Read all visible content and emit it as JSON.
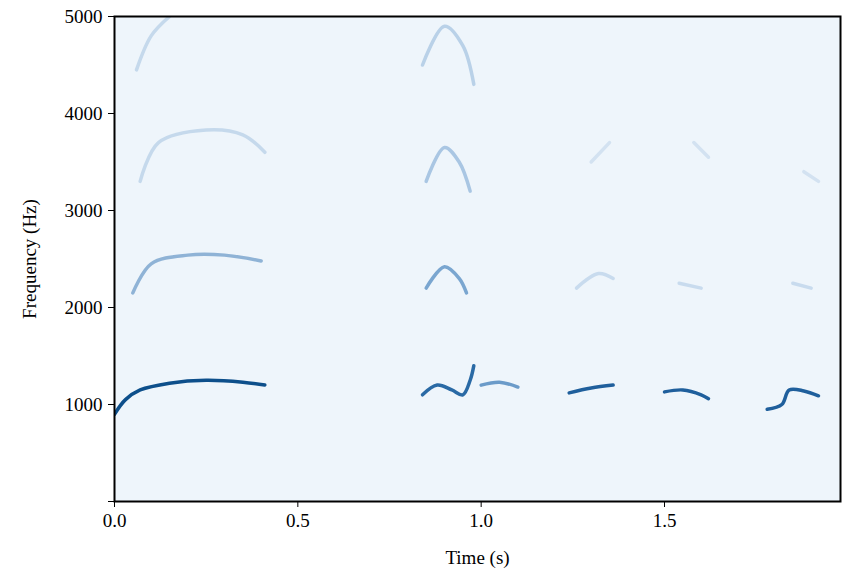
{
  "chart_data": {
    "type": "spectrogram",
    "x_label": "Time (s)",
    "y_label": "Frequency (Hz)",
    "xlim": [
      0,
      1.98
    ],
    "ylim": [
      0,
      5000
    ],
    "xticks": [
      {
        "value": 0,
        "label": "0.0"
      },
      {
        "value": 0.5,
        "label": "0.5"
      },
      {
        "value": 1,
        "label": "1.0"
      },
      {
        "value": 1.5,
        "label": "1.5"
      }
    ],
    "yticks": [
      0,
      1000,
      2000,
      3000,
      4000,
      5000
    ],
    "grid": false,
    "tracks": [
      {
        "color": "#0d4f8b",
        "x": [
          0.0,
          0.03,
          0.07,
          0.15,
          0.25,
          0.35,
          0.41
        ],
        "y": [
          900,
          1050,
          1150,
          1220,
          1250,
          1230,
          1200
        ]
      },
      {
        "color": "#8fb3d6",
        "x": [
          0.05,
          0.1,
          0.2,
          0.3,
          0.4
        ],
        "y": [
          2150,
          2450,
          2540,
          2540,
          2480
        ]
      },
      {
        "color": "#c5d9ec",
        "x": [
          0.07,
          0.12,
          0.25,
          0.35,
          0.41
        ],
        "y": [
          3300,
          3700,
          3830,
          3780,
          3600
        ]
      },
      {
        "color": "#c5d9ec",
        "x": [
          0.06,
          0.1,
          0.15
        ],
        "y": [
          4450,
          4800,
          5000
        ]
      },
      {
        "color": "#2a6aa5",
        "x": [
          0.84,
          0.88,
          0.92,
          0.95,
          0.97,
          0.98
        ],
        "y": [
          1100,
          1200,
          1150,
          1100,
          1250,
          1400
        ]
      },
      {
        "color": "#6b9bc9",
        "x": [
          1.0,
          1.05,
          1.1
        ],
        "y": [
          1200,
          1230,
          1180
        ]
      },
      {
        "color": "#7aa6d0",
        "x": [
          0.85,
          0.9,
          0.94,
          0.96
        ],
        "y": [
          2200,
          2420,
          2300,
          2150
        ]
      },
      {
        "color": "#a9c6e3",
        "x": [
          0.85,
          0.9,
          0.94,
          0.97
        ],
        "y": [
          3300,
          3650,
          3500,
          3200
        ]
      },
      {
        "color": "#b9d1e8",
        "x": [
          0.84,
          0.9,
          0.95,
          0.98
        ],
        "y": [
          4500,
          4900,
          4700,
          4300
        ]
      },
      {
        "color": "#1f5f9c",
        "x": [
          1.24,
          1.3,
          1.36
        ],
        "y": [
          1120,
          1170,
          1200
        ]
      },
      {
        "color": "#1f5f9c",
        "x": [
          1.5,
          1.55,
          1.6,
          1.62
        ],
        "y": [
          1130,
          1150,
          1100,
          1060
        ]
      },
      {
        "color": "#1f5f9c",
        "x": [
          1.78,
          1.82,
          1.84,
          1.88,
          1.92
        ],
        "y": [
          950,
          1000,
          1150,
          1140,
          1090
        ]
      },
      {
        "color": "#c8dbee",
        "x": [
          1.26,
          1.32,
          1.36
        ],
        "y": [
          2200,
          2350,
          2300
        ]
      },
      {
        "color": "#c8dbee",
        "x": [
          1.54,
          1.6
        ],
        "y": [
          2250,
          2200
        ]
      },
      {
        "color": "#c8dbee",
        "x": [
          1.85,
          1.9
        ],
        "y": [
          2250,
          2200
        ]
      },
      {
        "color": "#d3e2f1",
        "x": [
          1.3,
          1.35
        ],
        "y": [
          3500,
          3700
        ]
      },
      {
        "color": "#d3e2f1",
        "x": [
          1.58,
          1.62
        ],
        "y": [
          3700,
          3550
        ]
      },
      {
        "color": "#d3e2f1",
        "x": [
          1.88,
          1.92
        ],
        "y": [
          3400,
          3300
        ]
      }
    ]
  }
}
